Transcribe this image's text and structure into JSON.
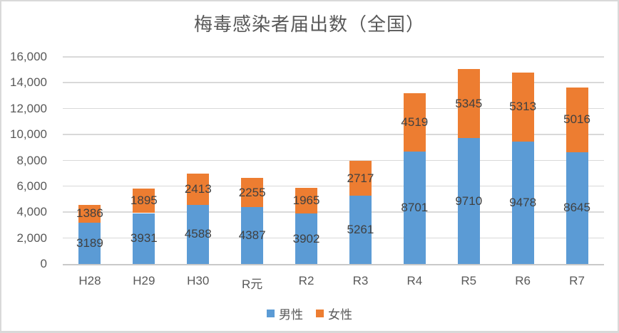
{
  "title": "梅毒感染者届出数（全国）",
  "chart_data": {
    "type": "bar",
    "stacked": true,
    "title": "梅毒感染者届出数（全国）",
    "categories": [
      "H28",
      "H29",
      "H30",
      "R元",
      "R2",
      "R3",
      "R4",
      "R5",
      "R6",
      "R7"
    ],
    "series": [
      {
        "key": "male",
        "name": "男性",
        "color": "#5B9BD5",
        "values": [
          3189,
          3931,
          4588,
          4387,
          3902,
          5261,
          8701,
          9710,
          9478,
          8645
        ]
      },
      {
        "key": "female",
        "name": "女性",
        "color": "#ED7D31",
        "values": [
          1386,
          1895,
          2413,
          2255,
          1965,
          2717,
          4519,
          5345,
          5313,
          5016
        ]
      }
    ],
    "xlabel": "",
    "ylabel": "",
    "ylim": [
      0,
      16000
    ],
    "ytick_step": 2000,
    "ytick_labels": [
      "0",
      "2,000",
      "4,000",
      "6,000",
      "8,000",
      "10,000",
      "12,000",
      "14,000",
      "16,000"
    ],
    "grid": true,
    "data_labels": true,
    "legend_position": "bottom"
  },
  "colors": {
    "male": "#5B9BD5",
    "female": "#ED7D31",
    "gridline": "#D9D9D9",
    "axis_line": "#C9C9C9",
    "title_text": "#595959",
    "tick_text": "#595959",
    "data_label_text": "#404040",
    "frame_border": "#D9D9D9",
    "background": "#FFFFFF"
  }
}
